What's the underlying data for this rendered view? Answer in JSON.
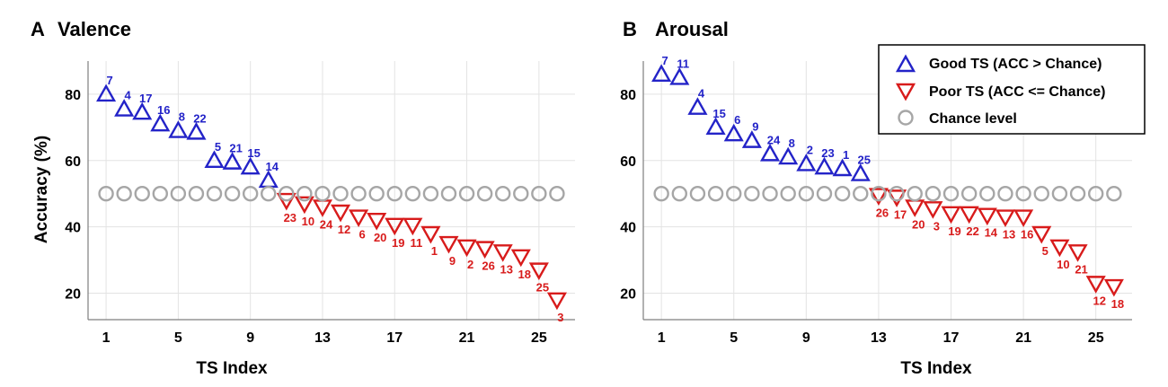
{
  "colors": {
    "good": "#2323c8",
    "poor": "#d81b1b",
    "chance": "#a6a6a6",
    "grid": "#e3e3e3",
    "axis": "#7f7f7f"
  },
  "legend": {
    "good": "Good TS (ACC > Chance)",
    "poor": "Poor TS (ACC <= Chance)",
    "chance": "Chance level"
  },
  "chart_data": [
    {
      "type": "scatter",
      "panel_letter": "A",
      "title": "Valence",
      "xlabel": "TS Index",
      "ylabel": "Accuracy (%)",
      "xlim": [
        0,
        27
      ],
      "ylim": [
        12,
        90
      ],
      "xticks": [
        1,
        5,
        9,
        13,
        17,
        21,
        25
      ],
      "yticks": [
        20,
        40,
        60,
        80
      ],
      "grid": true,
      "series": [
        {
          "name": "Good TS (ACC > Chance)",
          "marker": "triangle-up",
          "points": [
            [
              1,
              80,
              "7"
            ],
            [
              2,
              75.5,
              "4"
            ],
            [
              3,
              74.5,
              "17"
            ],
            [
              4,
              71,
              "16"
            ],
            [
              5,
              69,
              "8"
            ],
            [
              6,
              68.5,
              "22"
            ],
            [
              7,
              60,
              "5"
            ],
            [
              8,
              59.5,
              "21"
            ],
            [
              9,
              58,
              "15"
            ],
            [
              10,
              54,
              "14"
            ]
          ]
        },
        {
          "name": "Poor TS (ACC <= Chance)",
          "marker": "triangle-down",
          "points": [
            [
              11,
              48,
              "23"
            ],
            [
              12,
              47,
              "10"
            ],
            [
              13,
              46,
              "24"
            ],
            [
              14,
              44.5,
              "12"
            ],
            [
              15,
              43,
              "6"
            ],
            [
              16,
              42,
              "20"
            ],
            [
              17,
              40.5,
              "19"
            ],
            [
              18,
              40.5,
              "11"
            ],
            [
              19,
              38,
              "1"
            ],
            [
              20,
              35,
              "9"
            ],
            [
              21,
              34,
              "2"
            ],
            [
              22,
              33.5,
              "26"
            ],
            [
              23,
              32.5,
              "13"
            ],
            [
              24,
              31,
              "18"
            ],
            [
              25,
              27,
              "25"
            ],
            [
              26,
              18,
              "3"
            ]
          ]
        },
        {
          "name": "Chance level",
          "marker": "circle",
          "points": [
            [
              1,
              50
            ],
            [
              2,
              50
            ],
            [
              3,
              50
            ],
            [
              4,
              50
            ],
            [
              5,
              50
            ],
            [
              6,
              50
            ],
            [
              7,
              50
            ],
            [
              8,
              50
            ],
            [
              9,
              50
            ],
            [
              10,
              50
            ],
            [
              11,
              50
            ],
            [
              12,
              50
            ],
            [
              13,
              50
            ],
            [
              14,
              50
            ],
            [
              15,
              50
            ],
            [
              16,
              50
            ],
            [
              17,
              50
            ],
            [
              18,
              50
            ],
            [
              19,
              50
            ],
            [
              20,
              50
            ],
            [
              21,
              50
            ],
            [
              22,
              50
            ],
            [
              23,
              50
            ],
            [
              24,
              50
            ],
            [
              25,
              50
            ],
            [
              26,
              50
            ]
          ]
        }
      ]
    },
    {
      "type": "scatter",
      "panel_letter": "B",
      "title": "Arousal",
      "xlabel": "TS Index",
      "ylabel": "",
      "xlim": [
        0,
        27
      ],
      "ylim": [
        12,
        90
      ],
      "xticks": [
        1,
        5,
        9,
        13,
        17,
        21,
        25
      ],
      "yticks": [
        20,
        40,
        60,
        80
      ],
      "grid": true,
      "legend_position": "top-right",
      "series": [
        {
          "name": "Good TS (ACC > Chance)",
          "marker": "triangle-up",
          "points": [
            [
              1,
              86,
              "7"
            ],
            [
              2,
              85,
              "11"
            ],
            [
              3,
              76,
              "4"
            ],
            [
              4,
              70,
              "15"
            ],
            [
              5,
              68,
              "6"
            ],
            [
              6,
              66,
              "9"
            ],
            [
              7,
              62,
              "24"
            ],
            [
              8,
              61,
              "8"
            ],
            [
              9,
              59,
              "2"
            ],
            [
              10,
              58,
              "23"
            ],
            [
              11,
              57.5,
              "1"
            ],
            [
              12,
              56,
              "25"
            ]
          ]
        },
        {
          "name": "Poor TS (ACC <= Chance)",
          "marker": "triangle-down",
          "points": [
            [
              13,
              49.5,
              "26"
            ],
            [
              14,
              49,
              "17"
            ],
            [
              15,
              46,
              "20"
            ],
            [
              16,
              45.5,
              "3"
            ],
            [
              17,
              44,
              "19"
            ],
            [
              18,
              44,
              "22"
            ],
            [
              19,
              43.5,
              "14"
            ],
            [
              20,
              43,
              "13"
            ],
            [
              21,
              43,
              "16"
            ],
            [
              22,
              38,
              "5"
            ],
            [
              23,
              34,
              "10"
            ],
            [
              24,
              32.5,
              "21"
            ],
            [
              25,
              23,
              "12"
            ],
            [
              26,
              22,
              "18"
            ]
          ]
        },
        {
          "name": "Chance level",
          "marker": "circle",
          "points": [
            [
              1,
              50
            ],
            [
              2,
              50
            ],
            [
              3,
              50
            ],
            [
              4,
              50
            ],
            [
              5,
              50
            ],
            [
              6,
              50
            ],
            [
              7,
              50
            ],
            [
              8,
              50
            ],
            [
              9,
              50
            ],
            [
              10,
              50
            ],
            [
              11,
              50
            ],
            [
              12,
              50
            ],
            [
              13,
              50
            ],
            [
              14,
              50
            ],
            [
              15,
              50
            ],
            [
              16,
              50
            ],
            [
              17,
              50
            ],
            [
              18,
              50
            ],
            [
              19,
              50
            ],
            [
              20,
              50
            ],
            [
              21,
              50
            ],
            [
              22,
              50
            ],
            [
              23,
              50
            ],
            [
              24,
              50
            ],
            [
              25,
              50
            ],
            [
              26,
              50
            ]
          ]
        }
      ]
    }
  ]
}
